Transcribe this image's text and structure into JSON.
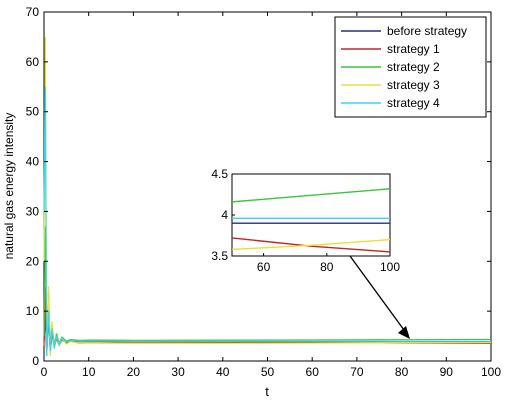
{
  "chart_data": [
    {
      "type": "line",
      "role": "main",
      "xlabel": "t",
      "ylabel": "natural gas energy intensity",
      "xlim": [
        0,
        100
      ],
      "ylim": [
        0,
        70
      ],
      "xticks": [
        "0",
        "10",
        "20",
        "30",
        "40",
        "50",
        "60",
        "70",
        "80",
        "90",
        "100"
      ],
      "yticks": [
        "0",
        "10",
        "20",
        "30",
        "40",
        "50",
        "60",
        "70"
      ],
      "grid": false,
      "legend_position": "top-right",
      "series": [
        {
          "name": "before strategy",
          "color": "#2c2c7a",
          "x": [
            0,
            0.3,
            0.6,
            1,
            1.4,
            1.8,
            2.3,
            2.8,
            3.4,
            4,
            5,
            6,
            8,
            10,
            20,
            40,
            60,
            80,
            100
          ],
          "y": [
            4,
            9,
            2,
            14,
            1.5,
            6,
            3,
            4.8,
            3.2,
            4.4,
            3.7,
            4.1,
            3.9,
            3.95,
            3.9,
            3.9,
            3.9,
            3.9,
            3.9
          ]
        },
        {
          "name": "strategy 1",
          "color": "#c0262b",
          "x": [
            0,
            0.3,
            0.6,
            1,
            1.4,
            1.8,
            2.3,
            2.8,
            3.4,
            4,
            5,
            6,
            8,
            10,
            20,
            40,
            60,
            80,
            100
          ],
          "y": [
            3,
            15,
            1,
            9,
            2,
            5.5,
            2.8,
            4.5,
            3.1,
            4.2,
            3.6,
            4,
            3.85,
            3.9,
            3.8,
            3.75,
            3.7,
            3.6,
            3.55
          ]
        },
        {
          "name": "strategy 2",
          "color": "#3cc43c",
          "x": [
            0,
            0.3,
            0.6,
            1,
            1.4,
            1.8,
            2.3,
            2.8,
            3.4,
            4,
            5,
            6,
            8,
            10,
            20,
            40,
            60,
            80,
            100
          ],
          "y": [
            5,
            27,
            1,
            12,
            3,
            7,
            3.2,
            5.5,
            3.5,
            4.8,
            4,
            4.3,
            4.15,
            4.2,
            4.15,
            4.18,
            4.22,
            4.27,
            4.32
          ]
        },
        {
          "name": "strategy 3",
          "color": "#e8e036",
          "x": [
            0,
            0.3,
            0.6,
            1,
            1.4,
            1.8,
            2.3,
            2.8,
            3.4,
            4,
            5,
            6,
            8,
            10,
            20,
            40,
            60,
            80,
            100
          ],
          "y": [
            20,
            65,
            1,
            15,
            1,
            8,
            2.5,
            5,
            3,
            4.5,
            3.4,
            3.9,
            3.5,
            3.6,
            3.55,
            3.55,
            3.6,
            3.65,
            3.7
          ]
        },
        {
          "name": "strategy 4",
          "color": "#36d6e8",
          "x": [
            0,
            0.3,
            0.6,
            1,
            1.4,
            1.8,
            2.3,
            2.8,
            3.4,
            4,
            5,
            6,
            8,
            10,
            20,
            40,
            60,
            80,
            100
          ],
          "y": [
            30,
            55,
            1,
            10,
            2,
            6.5,
            2.5,
            5,
            3.3,
            4.6,
            3.8,
            4.1,
            3.95,
            4,
            3.95,
            3.95,
            3.95,
            3.95,
            3.95
          ]
        }
      ]
    },
    {
      "type": "line",
      "role": "inset",
      "xlim": [
        50,
        100
      ],
      "ylim": [
        3.5,
        4.5
      ],
      "xticks": [
        "60",
        "80",
        "100"
      ],
      "yticks": [
        "3.5",
        "4",
        "4.5"
      ],
      "series": [
        {
          "name": "before strategy",
          "color": "#2c2c7a",
          "x": [
            50,
            75,
            100
          ],
          "y": [
            3.9,
            3.9,
            3.9
          ]
        },
        {
          "name": "strategy 1",
          "color": "#c0262b",
          "x": [
            50,
            75,
            100
          ],
          "y": [
            3.72,
            3.62,
            3.55
          ]
        },
        {
          "name": "strategy 2",
          "color": "#3cc43c",
          "x": [
            50,
            75,
            100
          ],
          "y": [
            4.16,
            4.24,
            4.32
          ]
        },
        {
          "name": "strategy 3",
          "color": "#e8e036",
          "x": [
            50,
            75,
            100
          ],
          "y": [
            3.58,
            3.63,
            3.7
          ]
        },
        {
          "name": "strategy 4",
          "color": "#36d6e8",
          "x": [
            50,
            75,
            100
          ],
          "y": [
            3.96,
            3.96,
            3.96
          ]
        }
      ]
    }
  ]
}
